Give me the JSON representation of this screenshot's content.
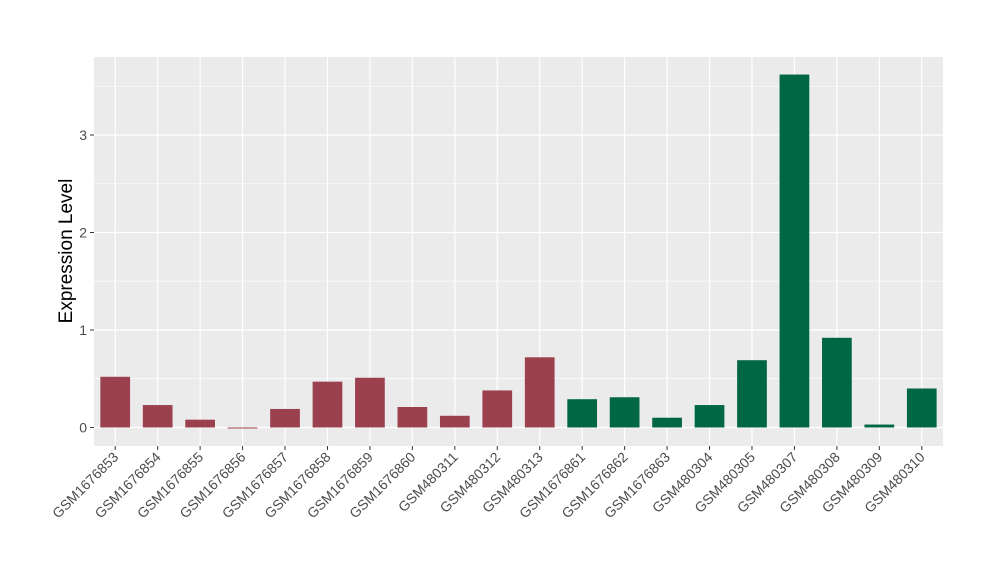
{
  "chart_data": {
    "type": "bar",
    "title": "",
    "xlabel": "",
    "ylabel": "Expression Level",
    "ylim": [
      -0.19,
      3.8
    ],
    "yticks": [
      0,
      1,
      2,
      3
    ],
    "grid": true,
    "legend": "none",
    "categories": [
      "GSM1676853",
      "GSM1676854",
      "GSM1676855",
      "GSM1676856",
      "GSM1676857",
      "GSM1676858",
      "GSM1676859",
      "GSM1676860",
      "GSM480311",
      "GSM480312",
      "GSM480313",
      "GSM1676861",
      "GSM1676862",
      "GSM1676863",
      "GSM480304",
      "GSM480305",
      "GSM480307",
      "GSM480308",
      "GSM480309",
      "GSM480310"
    ],
    "values": [
      0.52,
      0.23,
      0.08,
      -0.01,
      0.19,
      0.47,
      0.51,
      0.21,
      0.12,
      0.38,
      0.72,
      0.29,
      0.31,
      0.1,
      0.23,
      0.69,
      3.62,
      0.92,
      0.03,
      0.4
    ],
    "groups": [
      "g1",
      "g1",
      "g1",
      "g1",
      "g1",
      "g1",
      "g1",
      "g1",
      "g1",
      "g1",
      "g1",
      "g2",
      "g2",
      "g2",
      "g2",
      "g2",
      "g2",
      "g2",
      "g2",
      "g2"
    ],
    "group_colors": {
      "g1": "#9b404f",
      "g2": "#006745"
    }
  }
}
